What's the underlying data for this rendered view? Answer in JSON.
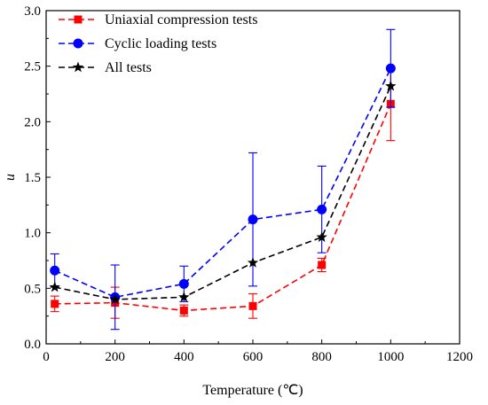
{
  "chart_data": {
    "type": "line",
    "xlabel": "Temperature (℃)",
    "ylabel": "u",
    "xlim": [
      0,
      1200
    ],
    "ylim": [
      0,
      3.0
    ],
    "xticks": [
      0,
      200,
      400,
      600,
      800,
      1000,
      1200
    ],
    "yticks": [
      0.0,
      0.5,
      1.0,
      1.5,
      2.0,
      2.5,
      3.0
    ],
    "ytick_labels": [
      "0.0",
      "0.5",
      "1.0",
      "1.5",
      "2.0",
      "2.5",
      "3.0"
    ],
    "grid": false,
    "legend_position": "top-left",
    "series": [
      {
        "name": "Uniaxial compression tests",
        "color": "#ff0000",
        "marker": "square",
        "x": [
          25,
          200,
          400,
          600,
          800,
          1000
        ],
        "y": [
          0.36,
          0.37,
          0.3,
          0.34,
          0.71,
          2.16
        ],
        "err": [
          0.07,
          0.14,
          0.05,
          0.11,
          0.06,
          0.33
        ]
      },
      {
        "name": "Cyclic loading tests",
        "color": "#0000ff",
        "marker": "circle",
        "x": [
          25,
          200,
          400,
          600,
          800,
          1000
        ],
        "y": [
          0.66,
          0.42,
          0.54,
          1.12,
          1.21,
          2.48
        ],
        "err": [
          0.15,
          0.29,
          0.16,
          0.6,
          0.39,
          0.35
        ]
      },
      {
        "name": "All tests",
        "color": "#000000",
        "marker": "star",
        "x": [
          25,
          200,
          400,
          600,
          800,
          1000
        ],
        "y": [
          0.51,
          0.4,
          0.42,
          0.73,
          0.96,
          2.32
        ],
        "err": [
          0,
          0,
          0,
          0,
          0,
          0
        ]
      }
    ]
  }
}
